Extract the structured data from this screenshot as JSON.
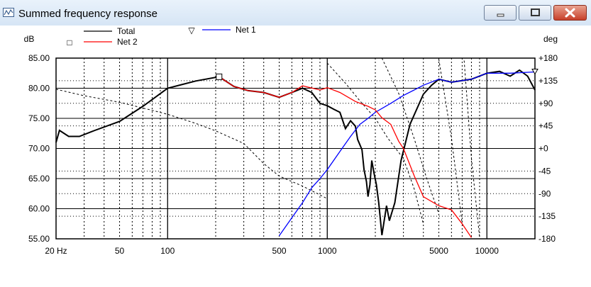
{
  "window": {
    "title": "Summed frequency response",
    "buttons": {
      "minimize": "minimize-icon",
      "maximize": "maximize-icon",
      "close": "close-icon"
    }
  },
  "colors": {
    "total": "#000000",
    "net1": "#0000ff",
    "net2": "#ff0000",
    "close_button": "#c7402a"
  },
  "chart_data": {
    "type": "line",
    "title": "",
    "xlabel": "",
    "ylabel": "dB",
    "y2label": "deg",
    "xscale": "log",
    "xlim": [
      20,
      20000
    ],
    "ylim": [
      55,
      85
    ],
    "y2lim": [
      -180,
      180
    ],
    "grid": true,
    "x_tick_labels": [
      {
        "value": 20,
        "label": "20 Hz"
      },
      {
        "value": 50,
        "label": "50"
      },
      {
        "value": 100,
        "label": "100"
      },
      {
        "value": 500,
        "label": "500"
      },
      {
        "value": 1000,
        "label": "1000"
      },
      {
        "value": 5000,
        "label": "5000"
      },
      {
        "value": 10000,
        "label": "10000"
      }
    ],
    "y_tick_labels": [
      "85.00",
      "80.00",
      "75.00",
      "70.00",
      "65.00",
      "60.00",
      "55.00"
    ],
    "y2_tick_labels": [
      "+180",
      "+135",
      "+90",
      "+45",
      "+0",
      "-45",
      "-90",
      "-135",
      "-180"
    ],
    "legend": [
      {
        "name": "Total",
        "marker": "",
        "color": "#000000"
      },
      {
        "name": "Net 1",
        "marker": "▽",
        "color": "#0000ff"
      },
      {
        "name": "Net 2",
        "marker": "□",
        "color": "#ff0000"
      }
    ],
    "markers": [
      {
        "series": "Total",
        "shape": "square",
        "x": 210,
        "y": 81.9
      },
      {
        "series": "Net 1",
        "shape": "triangle-down",
        "x": 20000,
        "y": 82.7
      }
    ],
    "series": [
      {
        "name": "Total",
        "axis": "dB",
        "color": "#000000",
        "points": [
          [
            20,
            71
          ],
          [
            21,
            73
          ],
          [
            24,
            72
          ],
          [
            28,
            72
          ],
          [
            35,
            73
          ],
          [
            50,
            74.5
          ],
          [
            70,
            77
          ],
          [
            100,
            80
          ],
          [
            150,
            81.2
          ],
          [
            210,
            81.9
          ],
          [
            260,
            80.3
          ],
          [
            320,
            79.6
          ],
          [
            400,
            79.3
          ],
          [
            500,
            78.5
          ],
          [
            600,
            79.3
          ],
          [
            700,
            80
          ],
          [
            800,
            79.3
          ],
          [
            900,
            77.5
          ],
          [
            1000,
            77.1
          ],
          [
            1100,
            76.5
          ],
          [
            1200,
            76
          ],
          [
            1300,
            73.3
          ],
          [
            1400,
            74.6
          ],
          [
            1500,
            73.7
          ],
          [
            1550,
            71.5
          ],
          [
            1650,
            69.8
          ],
          [
            1700,
            66.5
          ],
          [
            1760,
            64.5
          ],
          [
            1800,
            62
          ],
          [
            1850,
            64
          ],
          [
            1900,
            68
          ],
          [
            1960,
            66
          ],
          [
            2030,
            64
          ],
          [
            2100,
            61
          ],
          [
            2200,
            55.6
          ],
          [
            2350,
            60.5
          ],
          [
            2450,
            58
          ],
          [
            2650,
            61
          ],
          [
            2900,
            68
          ],
          [
            3300,
            74
          ],
          [
            4000,
            79
          ],
          [
            4500,
            80.5
          ],
          [
            5000,
            81.5
          ],
          [
            6000,
            81
          ],
          [
            8000,
            81.5
          ],
          [
            10000,
            82.5
          ],
          [
            12000,
            82.8
          ],
          [
            14000,
            82
          ],
          [
            16000,
            83
          ],
          [
            18000,
            82
          ],
          [
            20000,
            79.7
          ]
        ]
      },
      {
        "name": "Net 1",
        "axis": "dB",
        "color": "#0000ff",
        "points": [
          [
            500,
            55.5
          ],
          [
            600,
            58.5
          ],
          [
            700,
            61
          ],
          [
            800,
            63.5
          ],
          [
            900,
            65
          ],
          [
            1000,
            66.5
          ],
          [
            1200,
            69.5
          ],
          [
            1400,
            72
          ],
          [
            1600,
            74
          ],
          [
            1800,
            75
          ],
          [
            2000,
            76
          ],
          [
            2500,
            77.5
          ],
          [
            3000,
            78.8
          ],
          [
            3500,
            79.7
          ],
          [
            4000,
            80.5
          ],
          [
            5000,
            81.5
          ],
          [
            6000,
            81
          ],
          [
            8000,
            81.5
          ],
          [
            10000,
            82.5
          ],
          [
            14000,
            82.5
          ],
          [
            20000,
            82.7
          ]
        ]
      },
      {
        "name": "Net 2",
        "axis": "dB",
        "color": "#ff0000",
        "points": [
          [
            210,
            81.9
          ],
          [
            260,
            80.3
          ],
          [
            320,
            79.6
          ],
          [
            400,
            79.3
          ],
          [
            500,
            78.5
          ],
          [
            600,
            79.3
          ],
          [
            700,
            80.4
          ],
          [
            900,
            79.7
          ],
          [
            1000,
            80.1
          ],
          [
            1200,
            79.3
          ],
          [
            1500,
            77.8
          ],
          [
            1800,
            77
          ],
          [
            2000,
            76.4
          ],
          [
            2200,
            75.1
          ],
          [
            2500,
            74
          ],
          [
            2800,
            71.2
          ],
          [
            3000,
            70
          ],
          [
            3500,
            65.5
          ],
          [
            4000,
            62
          ],
          [
            5000,
            60.5
          ],
          [
            6000,
            59.8
          ],
          [
            7000,
            57.5
          ],
          [
            8000,
            55.2
          ]
        ]
      },
      {
        "name": "Total",
        "axis": "deg",
        "color": "#000000",
        "style": "dashed",
        "points": [
          [
            20,
            118
          ],
          [
            30,
            105
          ],
          [
            50,
            92
          ],
          [
            80,
            76
          ],
          [
            100,
            68
          ],
          [
            150,
            50
          ],
          [
            200,
            35
          ],
          [
            300,
            10
          ],
          [
            400,
            -30
          ],
          [
            500,
            -55
          ],
          [
            700,
            -75
          ],
          [
            1000,
            -100
          ]
        ]
      },
      {
        "name": "Total",
        "axis": "deg",
        "color": "#000000",
        "style": "dashed",
        "points": [
          [
            1000,
            170
          ],
          [
            1300,
            130
          ],
          [
            1600,
            95
          ],
          [
            2000,
            60
          ],
          [
            2400,
            20
          ],
          [
            3000,
            -20
          ],
          [
            3500,
            -80
          ],
          [
            4000,
            -150
          ]
        ]
      },
      {
        "name": "Total",
        "axis": "deg",
        "color": "#000000",
        "style": "dashed",
        "points": [
          [
            2200,
            180
          ],
          [
            2800,
            110
          ],
          [
            3500,
            20
          ],
          [
            4200,
            -60
          ],
          [
            5000,
            -130
          ]
        ]
      },
      {
        "name": "Total",
        "axis": "deg",
        "color": "#000000",
        "style": "dashed",
        "points": [
          [
            5000,
            178
          ],
          [
            6000,
            20
          ],
          [
            7000,
            -150
          ]
        ]
      },
      {
        "name": "Total",
        "axis": "deg",
        "color": "#000000",
        "style": "dashed",
        "points": [
          [
            7200,
            175
          ],
          [
            8000,
            -20
          ],
          [
            9000,
            -178
          ]
        ]
      }
    ]
  }
}
